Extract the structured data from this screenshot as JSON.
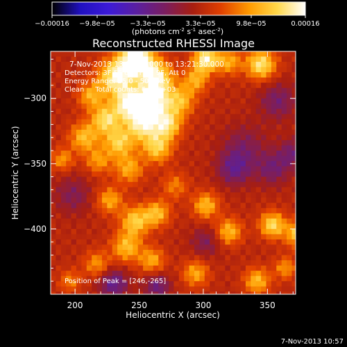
{
  "chart_data": {
    "type": "heatmap",
    "title": "Reconstructed RHESSI Image",
    "xlabel": "Heliocentric X (arcsec)",
    "ylabel": "Heliocentric Y (arcsec)",
    "xlim": [
      181,
      372
    ],
    "ylim": [
      -450,
      -264
    ],
    "x_ticks": [
      200,
      250,
      300,
      350
    ],
    "y_ticks": [
      -300,
      -350,
      -400
    ],
    "colorbar": {
      "label_prefix": "(photons cm",
      "label_exp1": "-2",
      "label_mid": " s",
      "label_exp2": "-1",
      "label_end": " asec",
      "label_exp3": "-2",
      "label_close": ")",
      "range": [
        -0.00016,
        0.00016
      ],
      "tick_labels": [
        "-0.00016",
        "-9.8e-05",
        "-3.3e-05",
        "3.3e-05",
        "9.8e-05",
        "0.00016"
      ],
      "stops": [
        "#000000",
        "#2010c0",
        "#3c1ad8",
        "#5a1fa0",
        "#7a1e60",
        "#a81e10",
        "#e04000",
        "#ff9a00",
        "#ffd84a",
        "#ffffff"
      ]
    },
    "annotations": [
      "7-Nov-2013 13:18:48.000 to 13:21:30.000",
      "Detectors: 3F 5F 6F 7F 8F 9F, Att 0",
      "Energy Range: 25.0 - 50.0 keV",
      "Clean     Total counts: 6.79E+03"
    ],
    "peak_label": "Position of Peak = [246,-265]",
    "peak": [
      246,
      -265
    ],
    "timestamp": "7-Nov-2013 10:57",
    "pixel_size_arcsec": 4,
    "sources": [
      {
        "x": 246,
        "y": -268,
        "amp": 0.00016,
        "sigma": 9
      },
      {
        "x": 230,
        "y": -282,
        "amp": 0.00012,
        "sigma": 10
      },
      {
        "x": 262,
        "y": -282,
        "amp": 0.00011,
        "sigma": 9
      },
      {
        "x": 258,
        "y": -300,
        "amp": 0.00013,
        "sigma": 9
      },
      {
        "x": 240,
        "y": -302,
        "amp": 0.00012,
        "sigma": 8
      },
      {
        "x": 222,
        "y": -314,
        "amp": 0.0001,
        "sigma": 8
      },
      {
        "x": 250,
        "y": -318,
        "amp": 0.00011,
        "sigma": 9
      },
      {
        "x": 270,
        "y": -318,
        "amp": 0.0001,
        "sigma": 8
      },
      {
        "x": 232,
        "y": -332,
        "amp": 9e-05,
        "sigma": 8
      },
      {
        "x": 262,
        "y": -336,
        "amp": 9e-05,
        "sigma": 8
      },
      {
        "x": 205,
        "y": -328,
        "amp": 8e-05,
        "sigma": 8
      },
      {
        "x": 280,
        "y": -300,
        "amp": 8e-05,
        "sigma": 8
      },
      {
        "x": 240,
        "y": -352,
        "amp": 7e-05,
        "sigma": 8
      },
      {
        "x": 216,
        "y": -346,
        "amp": 6e-05,
        "sigma": 7
      },
      {
        "x": 300,
        "y": -268,
        "amp": 0.00012,
        "sigma": 7
      },
      {
        "x": 292,
        "y": -284,
        "amp": 7e-05,
        "sigma": 7
      },
      {
        "x": 343,
        "y": -272,
        "amp": 0.00011,
        "sigma": 8
      },
      {
        "x": 318,
        "y": -270,
        "amp": 7e-05,
        "sigma": 7
      },
      {
        "x": 210,
        "y": -296,
        "amp": 7e-05,
        "sigma": 7
      },
      {
        "x": 225,
        "y": -376,
        "amp": 7e-05,
        "sigma": 7
      },
      {
        "x": 245,
        "y": -392,
        "amp": 9e-05,
        "sigma": 8
      },
      {
        "x": 262,
        "y": -386,
        "amp": 8e-05,
        "sigma": 7
      },
      {
        "x": 238,
        "y": -412,
        "amp": 8e-05,
        "sigma": 8
      },
      {
        "x": 258,
        "y": -422,
        "amp": 7e-05,
        "sigma": 7
      },
      {
        "x": 215,
        "y": -425,
        "amp": 6e-05,
        "sigma": 7
      },
      {
        "x": 300,
        "y": -380,
        "amp": 8e-05,
        "sigma": 7
      },
      {
        "x": 318,
        "y": -400,
        "amp": 8e-05,
        "sigma": 7
      },
      {
        "x": 292,
        "y": -432,
        "amp": 7e-05,
        "sigma": 7
      },
      {
        "x": 352,
        "y": -395,
        "amp": 0.0001,
        "sigma": 7
      },
      {
        "x": 372,
        "y": -402,
        "amp": 9e-05,
        "sigma": 7
      },
      {
        "x": 340,
        "y": -438,
        "amp": 8e-05,
        "sigma": 7
      },
      {
        "x": 362,
        "y": -428,
        "amp": 6e-05,
        "sigma": 6
      },
      {
        "x": 188,
        "y": -345,
        "amp": 6e-05,
        "sigma": 6
      },
      {
        "x": 194,
        "y": -438,
        "amp": 5e-05,
        "sigma": 6
      },
      {
        "x": 276,
        "y": -365,
        "amp": 5e-05,
        "sigma": 7
      },
      {
        "x": 356,
        "y": -300,
        "amp": -5e-05,
        "sigma": 10
      },
      {
        "x": 330,
        "y": -335,
        "amp": -4e-05,
        "sigma": 12
      },
      {
        "x": 322,
        "y": -352,
        "amp": -6e-05,
        "sigma": 9
      },
      {
        "x": 352,
        "y": -352,
        "amp": -5e-05,
        "sigma": 9
      },
      {
        "x": 228,
        "y": -440,
        "amp": -7e-05,
        "sigma": 8
      },
      {
        "x": 262,
        "y": -442,
        "amp": -6e-05,
        "sigma": 7
      },
      {
        "x": 196,
        "y": -372,
        "amp": -4e-05,
        "sigma": 10
      },
      {
        "x": 300,
        "y": -408,
        "amp": -4e-05,
        "sigma": 8
      },
      {
        "x": 368,
        "y": -340,
        "amp": -5e-05,
        "sigma": 8
      }
    ]
  }
}
